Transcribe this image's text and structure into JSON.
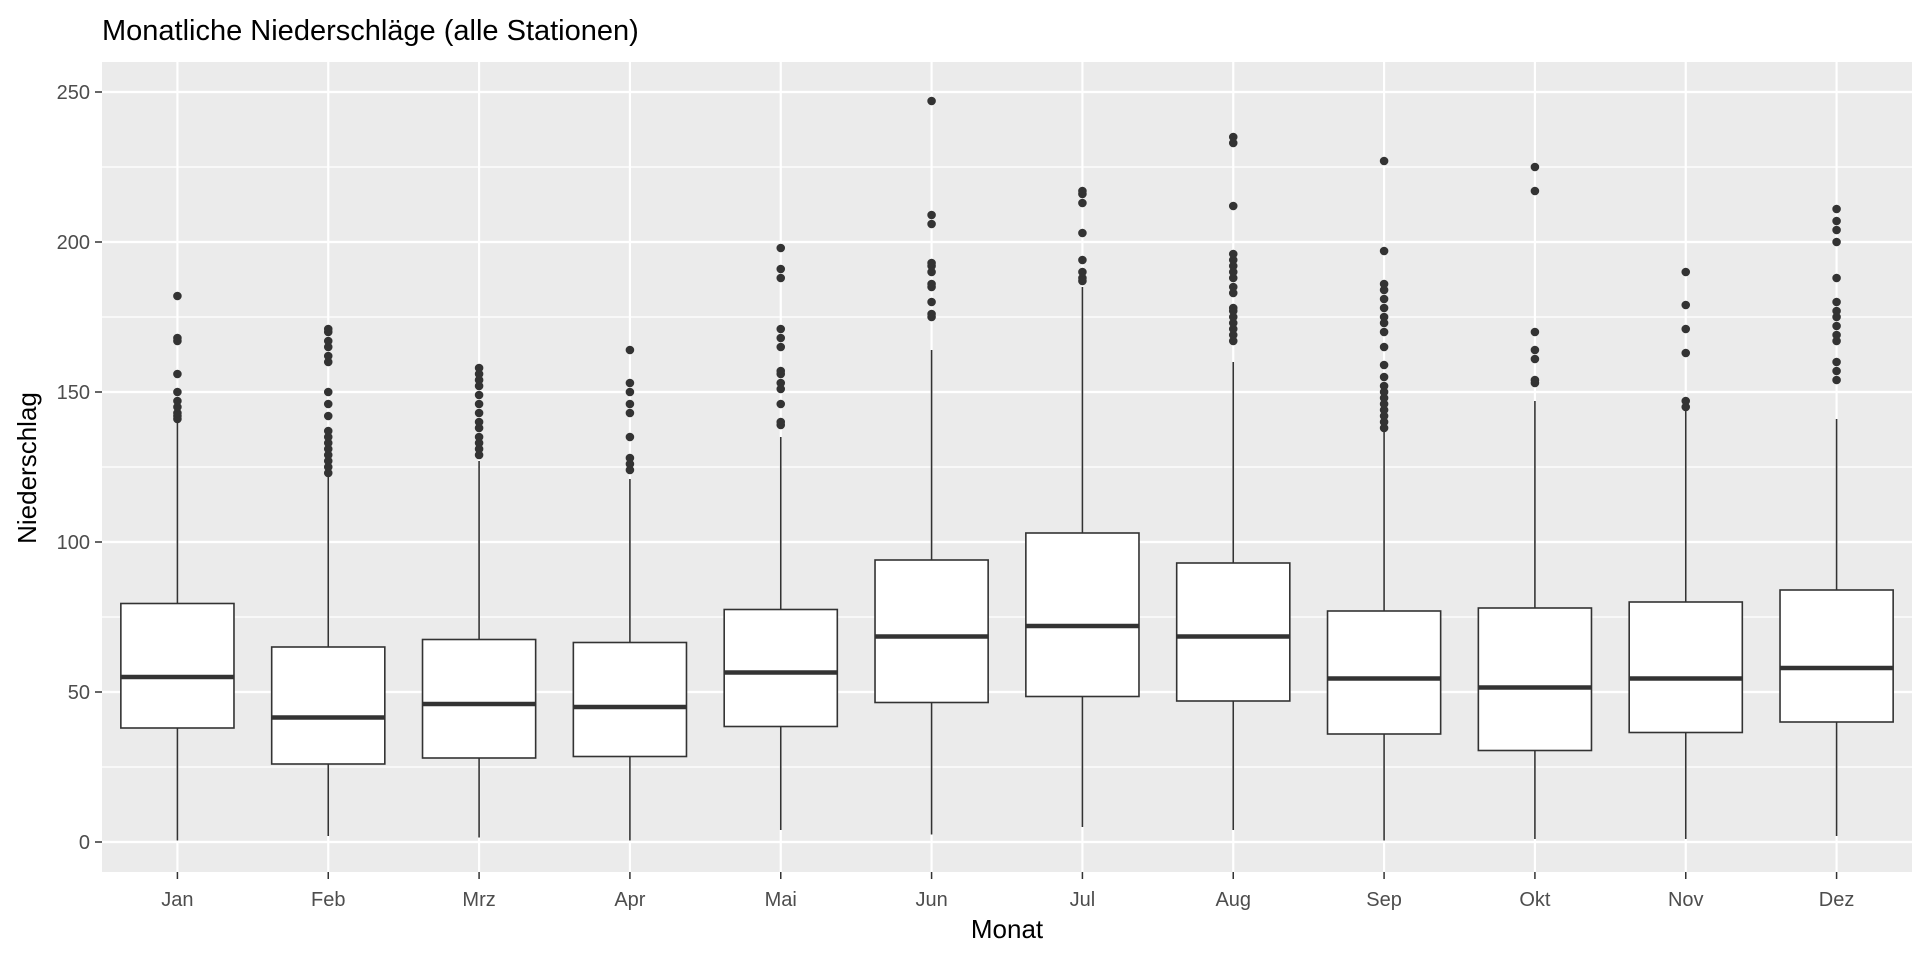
{
  "chart_data": {
    "type": "boxplot",
    "title": "Monatliche Niederschläge (alle Stationen)",
    "xlabel": "Monat",
    "ylabel": "Niederschlag",
    "ylim": [
      -10,
      260
    ],
    "yticks": [
      0,
      50,
      100,
      150,
      200,
      250
    ],
    "grid": true,
    "categories": [
      "Jan",
      "Feb",
      "Mrz",
      "Apr",
      "Mai",
      "Jun",
      "Jul",
      "Aug",
      "Sep",
      "Okt",
      "Nov",
      "Dez"
    ],
    "boxes": [
      {
        "category": "Jan",
        "whisker_low": 0.5,
        "q1": 38,
        "median": 55,
        "q3": 79.5,
        "whisker_high": 140,
        "outliers": [
          141,
          142,
          143,
          145,
          147,
          150,
          156,
          167,
          168,
          182
        ]
      },
      {
        "category": "Feb",
        "whisker_low": 2,
        "q1": 26,
        "median": 41.5,
        "q3": 65,
        "whisker_high": 122,
        "outliers": [
          123,
          125,
          127,
          129,
          131,
          133,
          135,
          137,
          142,
          146,
          150,
          160,
          162,
          165,
          167,
          170,
          171
        ]
      },
      {
        "category": "Mrz",
        "whisker_low": 1.5,
        "q1": 28,
        "median": 46,
        "q3": 67.5,
        "whisker_high": 127,
        "outliers": [
          129,
          131,
          133,
          135,
          138,
          140,
          143,
          146,
          149,
          152,
          154,
          156,
          158
        ]
      },
      {
        "category": "Apr",
        "whisker_low": 0.5,
        "q1": 28.5,
        "median": 45,
        "q3": 66.5,
        "whisker_high": 121,
        "outliers": [
          124,
          126,
          128,
          135,
          143,
          146,
          150,
          153,
          164
        ]
      },
      {
        "category": "Mai",
        "whisker_low": 4,
        "q1": 38.5,
        "median": 56.5,
        "q3": 77.5,
        "whisker_high": 135,
        "outliers": [
          139,
          140,
          146,
          151,
          153,
          156,
          157,
          165,
          168,
          171,
          188,
          191,
          198
        ]
      },
      {
        "category": "Jun",
        "whisker_low": 2.5,
        "q1": 46.5,
        "median": 68.5,
        "q3": 94,
        "whisker_high": 164,
        "outliers": [
          175,
          176,
          180,
          185,
          186,
          190,
          192,
          193,
          206,
          209,
          247
        ]
      },
      {
        "category": "Jul",
        "whisker_low": 5,
        "q1": 48.5,
        "median": 72,
        "q3": 103,
        "whisker_high": 185,
        "outliers": [
          187,
          188,
          190,
          194,
          203,
          213,
          216,
          217
        ]
      },
      {
        "category": "Aug",
        "whisker_low": 4,
        "q1": 47,
        "median": 68.5,
        "q3": 93,
        "whisker_high": 160,
        "outliers": [
          167,
          169,
          171,
          173,
          175,
          177,
          178,
          183,
          185,
          188,
          190,
          192,
          194,
          196,
          212,
          233,
          235
        ]
      },
      {
        "category": "Sep",
        "whisker_low": 0.5,
        "q1": 36,
        "median": 54.5,
        "q3": 77,
        "whisker_high": 137,
        "outliers": [
          138,
          140,
          142,
          144,
          146,
          148,
          150,
          152,
          155,
          159,
          165,
          170,
          173,
          175,
          178,
          181,
          184,
          186,
          197,
          227
        ]
      },
      {
        "category": "Okt",
        "whisker_low": 1,
        "q1": 30.5,
        "median": 51.5,
        "q3": 78,
        "whisker_high": 147,
        "outliers": [
          153,
          154,
          161,
          164,
          170,
          217,
          225
        ]
      },
      {
        "category": "Nov",
        "whisker_low": 1,
        "q1": 36.5,
        "median": 54.5,
        "q3": 80,
        "whisker_high": 144,
        "outliers": [
          145,
          147,
          163,
          171,
          179,
          190
        ]
      },
      {
        "category": "Dez",
        "whisker_low": 2,
        "q1": 40,
        "median": 58,
        "q3": 84,
        "whisker_high": 141,
        "outliers": [
          154,
          157,
          160,
          167,
          169,
          172,
          175,
          177,
          180,
          188,
          200,
          204,
          207,
          211
        ]
      }
    ]
  }
}
